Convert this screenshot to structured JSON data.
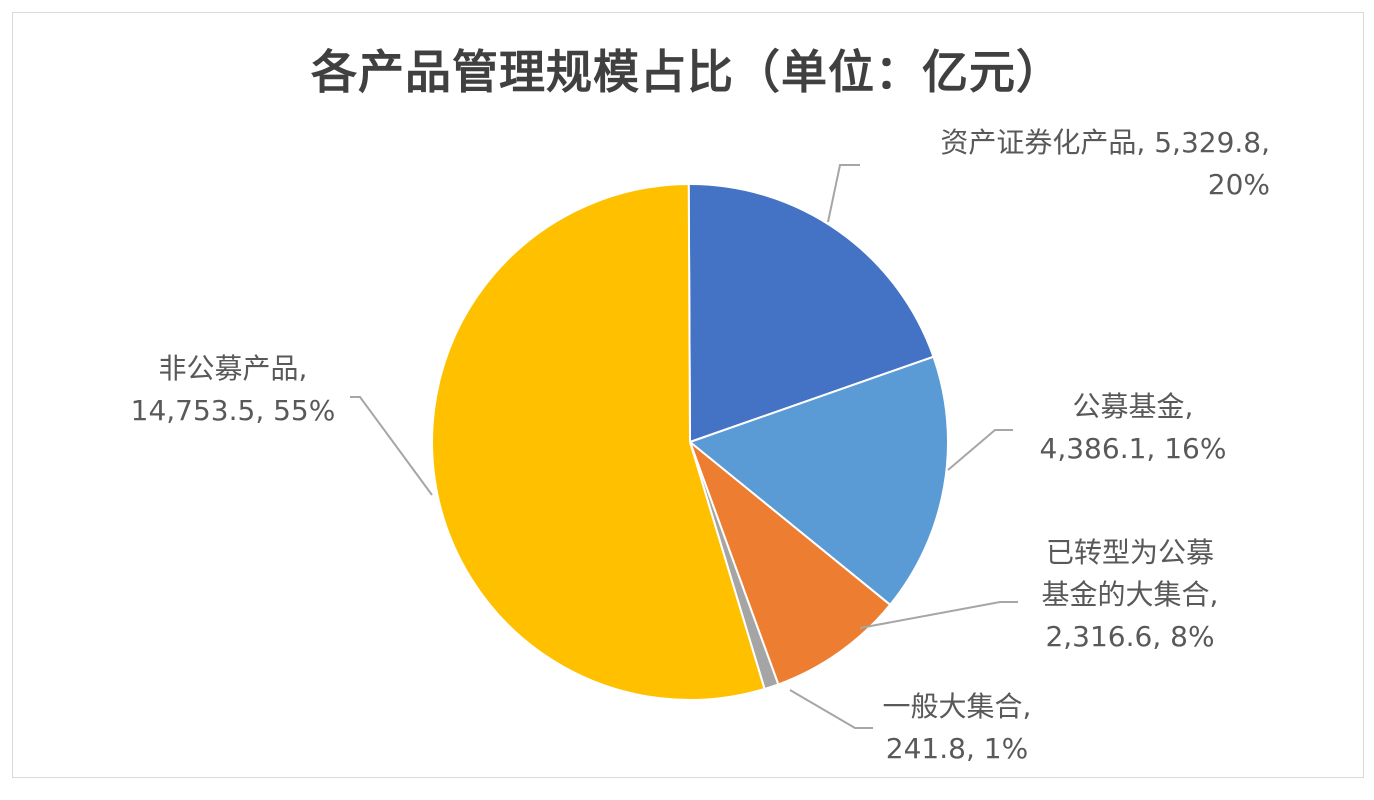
{
  "chart_data": {
    "type": "pie",
    "title": "各产品管理规模占比（单位：亿元）",
    "slices": [
      {
        "name": "资产证券化产品",
        "value": 5329.8,
        "value_label": "5,329.8",
        "percent_label": "20%",
        "color": "#4472c4"
      },
      {
        "name": "公募基金",
        "value": 4386.1,
        "value_label": "4,386.1",
        "percent_label": "16%",
        "color": "#5b9bd5"
      },
      {
        "name": "已转型为公募基金的大集合",
        "value": 2316.6,
        "value_label": "2,316.6",
        "percent_label": "8%",
        "color": "#ed7d31"
      },
      {
        "name": "一般大集合",
        "value": 241.8,
        "value_label": "241.8",
        "percent_label": "1%",
        "color": "#a5a5a5"
      },
      {
        "name": "非公募产品",
        "value": 14753.5,
        "value_label": "14,753.5",
        "percent_label": "55%",
        "color": "#ffc000"
      }
    ],
    "labels": [
      {
        "lines": [
          "资产证券化产品, 5,329.8,",
          "20%"
        ]
      },
      {
        "lines": [
          "公募基金,",
          "4,386.1, 16%"
        ]
      },
      {
        "lines": [
          "已转型为公募",
          "基金的大集合,",
          "2,316.6, 8%"
        ]
      },
      {
        "lines": [
          "一般大集合,",
          "241.8, 1%"
        ]
      },
      {
        "lines": [
          "非公募产品,",
          "14,753.5, 55%"
        ]
      }
    ]
  }
}
